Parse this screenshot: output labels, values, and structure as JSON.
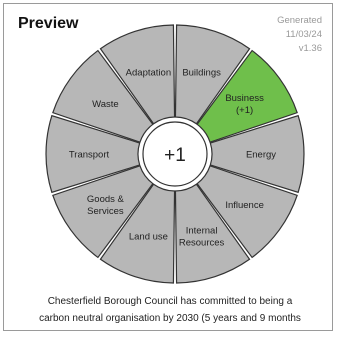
{
  "header": {
    "title": "Preview",
    "generated_label": "Generated",
    "date": "11/03/24",
    "version": "v1.36"
  },
  "wheel": {
    "center_value": "+1",
    "neutral_color": "#b7b7b7",
    "highlight_color": "#6fbf4b",
    "segments": [
      {
        "lines": [
          "Buildings"
        ],
        "highlight": false
      },
      {
        "lines": [
          "Business",
          "(+1)"
        ],
        "highlight": true
      },
      {
        "lines": [
          "Energy"
        ],
        "highlight": false
      },
      {
        "lines": [
          "Influence"
        ],
        "highlight": false
      },
      {
        "lines": [
          "Internal",
          "Resources"
        ],
        "highlight": false
      },
      {
        "lines": [
          "Land use"
        ],
        "highlight": false
      },
      {
        "lines": [
          "Goods &",
          "Services"
        ],
        "highlight": false
      },
      {
        "lines": [
          "Transport"
        ],
        "highlight": false
      },
      {
        "lines": [
          "Waste"
        ],
        "highlight": false
      },
      {
        "lines": [
          "Adaptation"
        ],
        "highlight": false
      }
    ]
  },
  "footer": {
    "line1": "Chesterfield Borough Council has committed to being a",
    "line2": "carbon neutral organisation by 2030 (5 years and 9 months"
  }
}
